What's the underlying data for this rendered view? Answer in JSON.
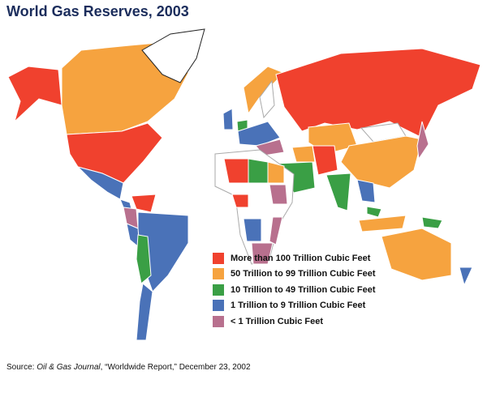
{
  "title": "World Gas Reserves, 2003",
  "legend": [
    {
      "label": "More than 100 Trillion Cubic Feet",
      "color": "#f0412e"
    },
    {
      "label": "50 Trillion to 99 Trillion Cubic Feet",
      "color": "#f6a33f"
    },
    {
      "label": "10 Trillion to 49 Trillion Cubic Feet",
      "color": "#3a9f45"
    },
    {
      "label": "1 Trillion to 9 Trillion Cubic Feet",
      "color": "#4a72b8"
    },
    {
      "label": "< 1 Trillion Cubic Feet",
      "color": "#b8708e"
    }
  ],
  "source": {
    "prefix": "Source: ",
    "publication": "Oil & Gas Journal",
    "rest": ", “Worldwide Report,” December 23, 2002"
  }
}
